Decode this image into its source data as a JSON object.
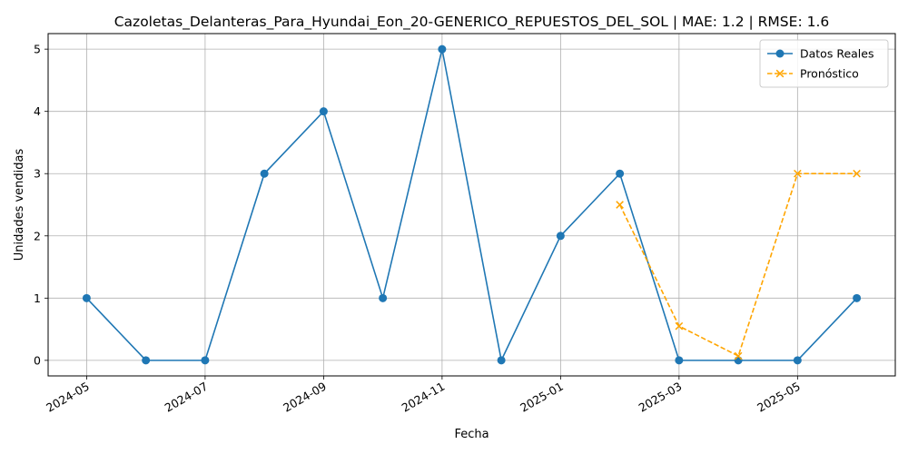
{
  "chart_data": {
    "type": "line",
    "title": "Cazoletas_Delanteras_Para_Hyundai_Eon_20-GENERICO_REPUESTOS_DEL_SOL | MAE: 1.2 | RMSE: 1.6",
    "xlabel": "Fecha",
    "ylabel": "Unidades vendidas",
    "ylim": [
      0,
      5
    ],
    "yticks": [
      "0",
      "1",
      "2",
      "3",
      "4",
      "5"
    ],
    "xticks": [
      "2024-05",
      "2024-07",
      "2024-09",
      "2024-11",
      "2025-01",
      "2025-03",
      "2025-05"
    ],
    "grid": true,
    "legend_position": "top-right",
    "series": [
      {
        "name": "Datos Reales",
        "color": "#1f77b4",
        "style": "solid",
        "marker": "circle",
        "x": [
          "2024-05",
          "2024-06",
          "2024-07",
          "2024-08",
          "2024-09",
          "2024-10",
          "2024-11",
          "2024-12",
          "2025-01",
          "2025-02",
          "2025-03",
          "2025-04",
          "2025-05",
          "2025-06"
        ],
        "values": [
          1,
          0,
          0,
          3,
          4,
          1,
          5,
          0,
          2,
          3,
          0,
          0,
          0,
          1
        ]
      },
      {
        "name": "Pronóstico",
        "color": "#ffa500",
        "style": "dashed",
        "marker": "x",
        "x": [
          "2025-02",
          "2025-03",
          "2025-04",
          "2025-05",
          "2025-06"
        ],
        "values": [
          2.5,
          0.55,
          0.07,
          3.0,
          3.0
        ]
      }
    ]
  }
}
